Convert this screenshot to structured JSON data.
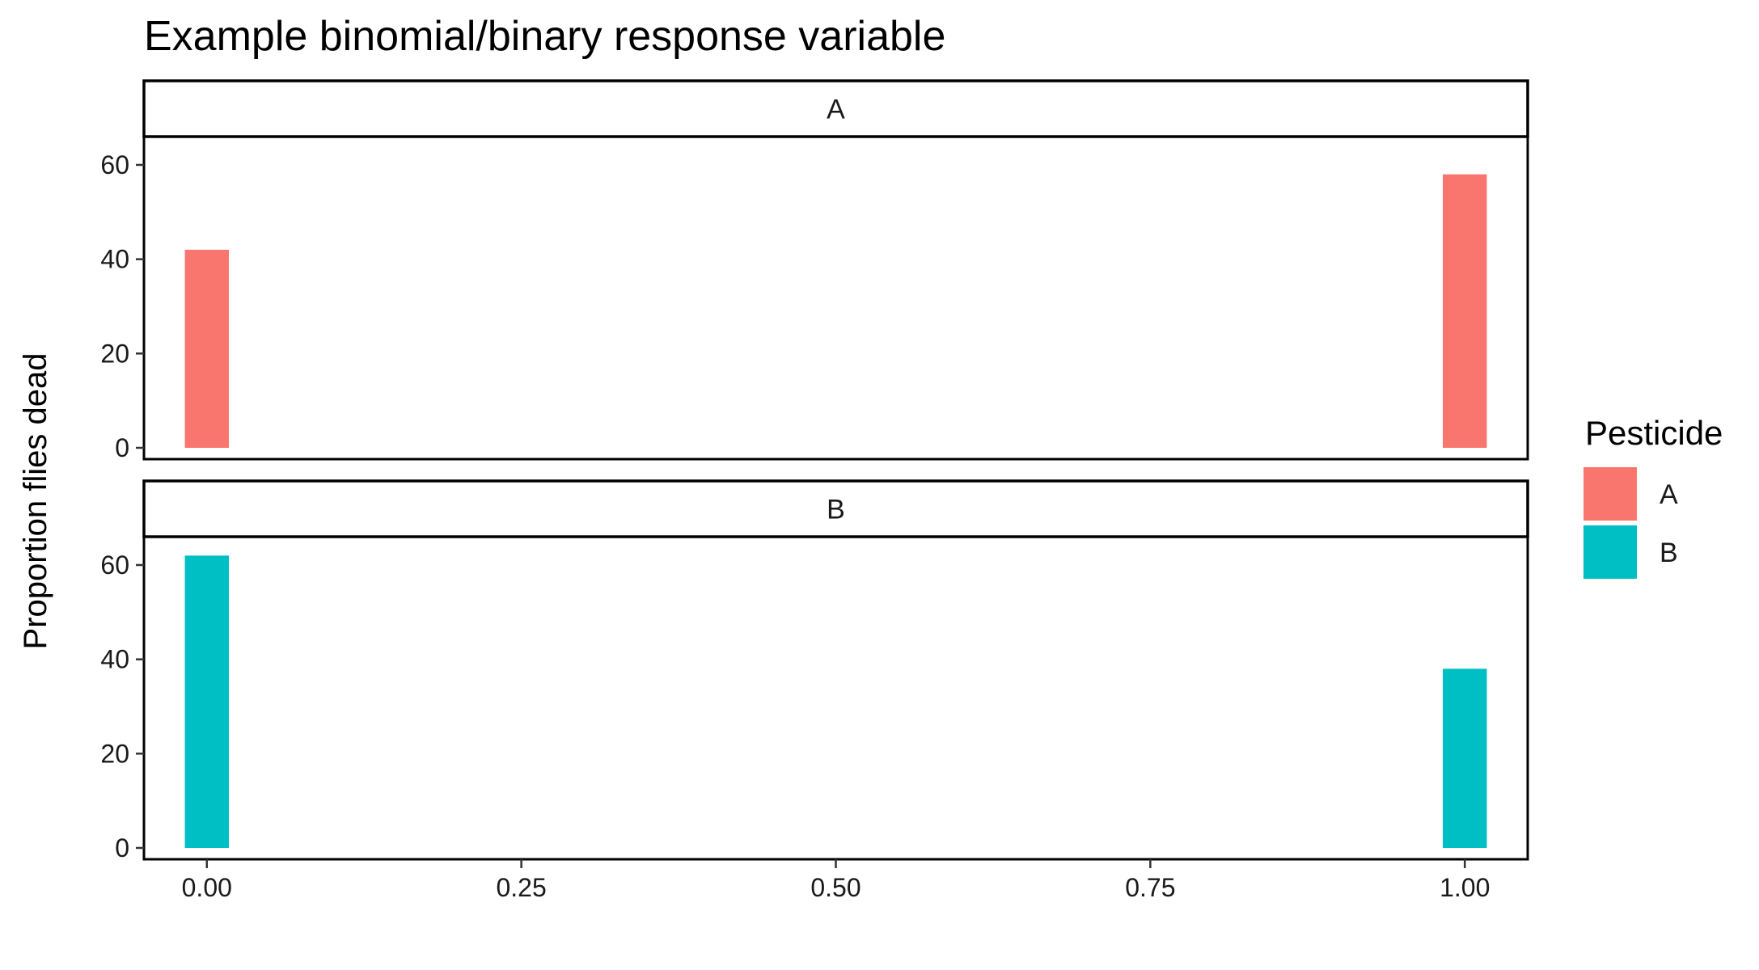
{
  "chart_data": {
    "type": "bar",
    "title": "Example binomial/binary response variable",
    "ylabel": "Proportion flies dead",
    "xlabel": "",
    "xlim": [
      -0.05,
      1.05
    ],
    "ylim": [
      0,
      66
    ],
    "x_ticks": [
      0,
      0.25,
      0.5,
      0.75,
      1
    ],
    "x_tick_labels": [
      "0.00",
      "0.25",
      "0.50",
      "0.75",
      "1.00"
    ],
    "y_ticks": [
      0,
      20,
      40,
      60
    ],
    "y_tick_labels": [
      "0",
      "20",
      "40",
      "60"
    ],
    "bar_width": 0.035,
    "grid": false,
    "legend": {
      "title": "Pesticide",
      "position": "right",
      "entries": [
        {
          "label": "A",
          "color": "#F8766D"
        },
        {
          "label": "B",
          "color": "#00BFC4"
        }
      ]
    },
    "facets": [
      {
        "label": "A",
        "color": "#F8766D",
        "x": [
          0,
          1
        ],
        "values": [
          42,
          58
        ]
      },
      {
        "label": "B",
        "color": "#00BFC4",
        "x": [
          0,
          1
        ],
        "values": [
          62,
          38
        ]
      }
    ]
  }
}
